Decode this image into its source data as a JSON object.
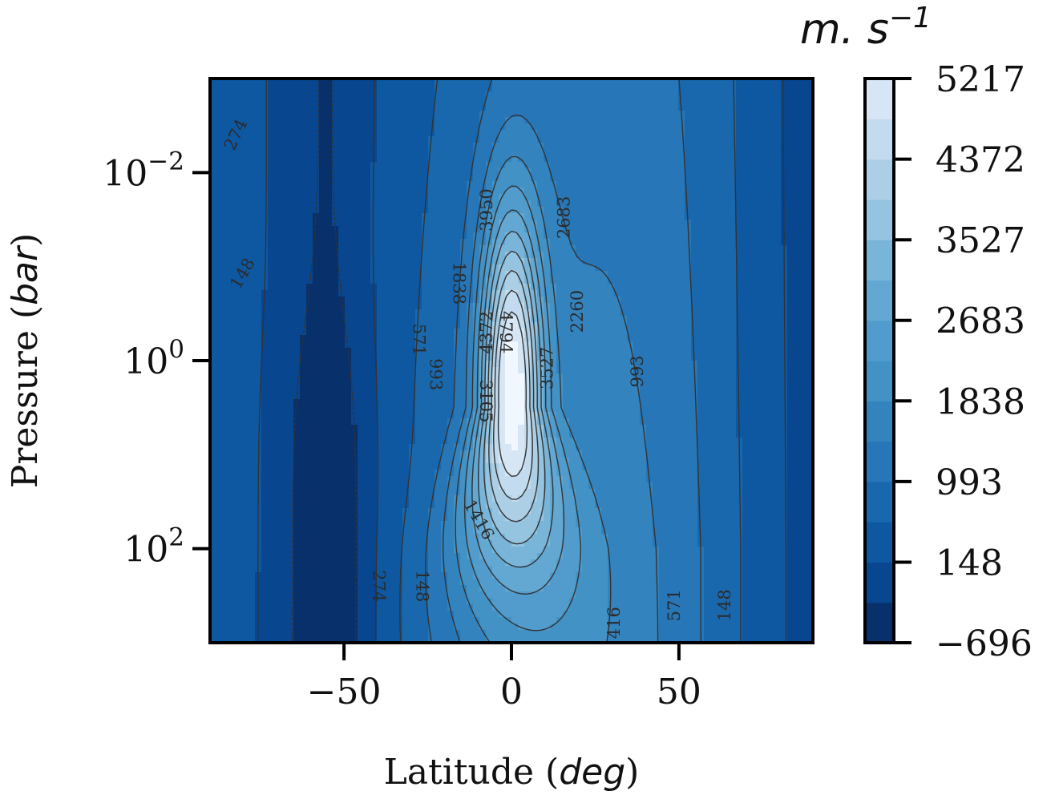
{
  "chart_data": {
    "type": "heatmap",
    "xlabel_prefix": "Latitude (",
    "xlabel_var": "deg",
    "xlabel_suffix": ")",
    "ylabel_prefix": "Pressure (",
    "ylabel_var": "bar",
    "ylabel_suffix": ")",
    "xlim": [
      -90,
      90
    ],
    "ylim_bar": [
      1000,
      0.001
    ],
    "y_scale": "log",
    "x_ticks": [
      {
        "value": -50,
        "label": "−50"
      },
      {
        "value": 0,
        "label": "0"
      },
      {
        "value": 50,
        "label": "50"
      }
    ],
    "y_ticks": [
      {
        "value": 0.01,
        "base": "10",
        "exp": "−2"
      },
      {
        "value": 1,
        "base": "10",
        "exp": "0"
      },
      {
        "value": 100,
        "base": "10",
        "exp": "2"
      }
    ],
    "colorbar": {
      "unit_label": "m. s",
      "unit_exp": "−1",
      "min": -696,
      "max": 5217,
      "ticks": [
        {
          "value": 5217,
          "label": "5217"
        },
        {
          "value": 4372,
          "label": "4372"
        },
        {
          "value": 3527,
          "label": "3527"
        },
        {
          "value": 2683,
          "label": "2683"
        },
        {
          "value": 1838,
          "label": "1838"
        },
        {
          "value": 993,
          "label": "993"
        },
        {
          "value": 148,
          "label": "148"
        },
        {
          "value": -696,
          "label": "−696"
        }
      ],
      "levels": 14,
      "colors": [
        "#08306b",
        "#08468f",
        "#0e58a2",
        "#1968ad",
        "#2776b8",
        "#3383be",
        "#4292c6",
        "#519ccc",
        "#62a8d2",
        "#79b5d9",
        "#94c4df",
        "#adcfe6",
        "#c2dbee",
        "#d6e6f4",
        "#f0f7ff"
      ]
    },
    "zonal_wind_field": {
      "description_units": "m/s",
      "jet_peak_value": 5217,
      "jet_peak_latitude": 0,
      "retrograde_min_value": -696,
      "retrograde_latitude": -55
    },
    "contour_labels": [
      {
        "text": "274",
        "lat": -82,
        "p": 0.004,
        "rot": -65
      },
      {
        "text": "148",
        "lat": -80,
        "p": 0.12,
        "rot": -60
      },
      {
        "text": "571",
        "lat": -28,
        "p": 0.6,
        "rot": 90
      },
      {
        "text": "993",
        "lat": -23,
        "p": 1.4,
        "rot": 90
      },
      {
        "text": "1838",
        "lat": -16,
        "p": 0.15,
        "rot": 90
      },
      {
        "text": "3950",
        "lat": -7,
        "p": 0.025,
        "rot": -90
      },
      {
        "text": "4372",
        "lat": -7,
        "p": 0.5,
        "rot": -90
      },
      {
        "text": "4794",
        "lat": -2,
        "p": 0.5,
        "rot": 90
      },
      {
        "text": "3105",
        "lat": -8,
        "p": 2.7,
        "rot": 90
      },
      {
        "text": "3527",
        "lat": 11,
        "p": 1.2,
        "rot": -90
      },
      {
        "text": "2683",
        "lat": 16,
        "p": 0.03,
        "rot": -90
      },
      {
        "text": "2260",
        "lat": 20,
        "p": 0.3,
        "rot": -90
      },
      {
        "text": "993",
        "lat": 38,
        "p": 1.3,
        "rot": -90
      },
      {
        "text": "1416",
        "lat": -10,
        "p": 50,
        "rot": 60
      },
      {
        "text": "274",
        "lat": -40,
        "p": 250,
        "rot": 90
      },
      {
        "text": "148",
        "lat": -27,
        "p": 250,
        "rot": 90
      },
      {
        "text": "1416",
        "lat": 31,
        "p": 700,
        "rot": -90
      },
      {
        "text": "571",
        "lat": 49,
        "p": 400,
        "rot": -90
      },
      {
        "text": "148",
        "lat": 64,
        "p": 400,
        "rot": -90
      }
    ]
  }
}
